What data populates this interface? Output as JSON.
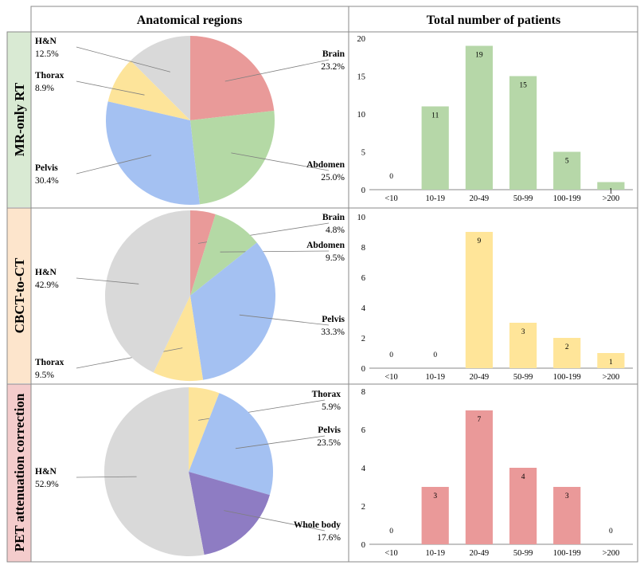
{
  "headers": {
    "col1": "Anatomical regions",
    "col2": "Total number of patients"
  },
  "colors": {
    "Brain": "#e99a99",
    "Abdomen": "#b4d9a5",
    "Pelvis": "#a4c1f2",
    "Thorax": "#fde49a",
    "H&N": "#d9d9d9",
    "Whole body": "#8e7cc3",
    "rowbg_mr": "#d9ead3",
    "rowbg_cbct": "#fde5cc",
    "rowbg_pet": "#f4cccc",
    "bar_mr": "#b6d7a8",
    "bar_cbct": "#ffe599",
    "bar_pet": "#ea9999"
  },
  "chart_data": [
    {
      "type": "pie",
      "row": "MR-only RT",
      "title": "Anatomical regions",
      "slices": [
        {
          "label": "Brain",
          "value": 23.2,
          "pct_label": "23.2%"
        },
        {
          "label": "Abdomen",
          "value": 25.0,
          "pct_label": "25.0%"
        },
        {
          "label": "Pelvis",
          "value": 30.4,
          "pct_label": "30.4%"
        },
        {
          "label": "Thorax",
          "value": 8.9,
          "pct_label": "8.9%"
        },
        {
          "label": "H&N",
          "value": 12.5,
          "pct_label": "12.5%"
        }
      ]
    },
    {
      "type": "bar",
      "row": "MR-only RT",
      "title": "Total number of patients",
      "categories": [
        "<10",
        "10-19",
        "20-49",
        "50-99",
        "100-199",
        ">200"
      ],
      "values": [
        0,
        11,
        19,
        15,
        5,
        1
      ],
      "ylim": [
        0,
        20
      ],
      "yticks": [
        0,
        5,
        10,
        15,
        20
      ]
    },
    {
      "type": "pie",
      "row": "CBCT-to-CT",
      "title": "Anatomical regions",
      "slices": [
        {
          "label": "Brain",
          "value": 4.8,
          "pct_label": "4.8%"
        },
        {
          "label": "Abdomen",
          "value": 9.5,
          "pct_label": "9.5%"
        },
        {
          "label": "Pelvis",
          "value": 33.3,
          "pct_label": "33.3%"
        },
        {
          "label": "Thorax",
          "value": 9.5,
          "pct_label": "9.5%"
        },
        {
          "label": "H&N",
          "value": 42.9,
          "pct_label": "42.9%"
        }
      ]
    },
    {
      "type": "bar",
      "row": "CBCT-to-CT",
      "title": "Total number of patients",
      "categories": [
        "<10",
        "10-19",
        "20-49",
        "50-99",
        "100-199",
        ">200"
      ],
      "values": [
        0,
        0,
        9,
        3,
        2,
        1
      ],
      "ylim": [
        0,
        10
      ],
      "yticks": [
        0,
        2,
        4,
        6,
        8,
        10
      ]
    },
    {
      "type": "pie",
      "row": "PET attenuation correction",
      "title": "Anatomical regions",
      "slices": [
        {
          "label": "Thorax",
          "value": 5.9,
          "pct_label": "5.9%"
        },
        {
          "label": "Pelvis",
          "value": 23.5,
          "pct_label": "23.5%"
        },
        {
          "label": "Whole body",
          "value": 17.6,
          "pct_label": "17.6%"
        },
        {
          "label": "H&N",
          "value": 52.9,
          "pct_label": "52.9%"
        }
      ]
    },
    {
      "type": "bar",
      "row": "PET attenuation correction",
      "title": "Total number of patients",
      "categories": [
        "<10",
        "10-19",
        "20-49",
        "50-99",
        "100-199",
        ">200"
      ],
      "values": [
        0,
        3,
        7,
        4,
        3,
        0
      ],
      "ylim": [
        0,
        8
      ],
      "yticks": [
        0,
        2,
        4,
        6,
        8
      ]
    }
  ]
}
